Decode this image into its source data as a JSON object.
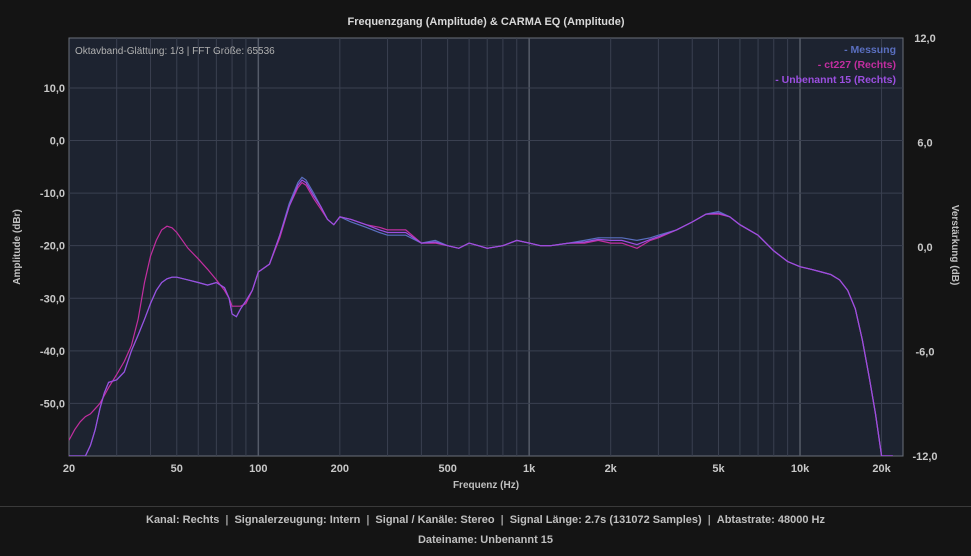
{
  "chart_data": {
    "type": "line",
    "title": "Frequenzgang (Amplitude) & CARMA EQ (Amplitude)",
    "xlabel": "Frequenz (Hz)",
    "ylabel": "Amplitude (dBr)",
    "y2label": "Verstärkung (dB)",
    "xscale": "log",
    "xlim": [
      20,
      24000
    ],
    "ylim": [
      -60,
      19.5
    ],
    "y2lim": [
      -12,
      12
    ],
    "x_ticks": [
      {
        "value": 20,
        "label": "20"
      },
      {
        "value": 50,
        "label": "50"
      },
      {
        "value": 100,
        "label": "100"
      },
      {
        "value": 200,
        "label": "200"
      },
      {
        "value": 500,
        "label": "500"
      },
      {
        "value": 1000,
        "label": "1k"
      },
      {
        "value": 2000,
        "label": "2k"
      },
      {
        "value": 5000,
        "label": "5k"
      },
      {
        "value": 10000,
        "label": "10k"
      },
      {
        "value": 20000,
        "label": "20k"
      }
    ],
    "y_ticks": [
      {
        "value": 10,
        "label": "10,0"
      },
      {
        "value": 0,
        "label": "0,0"
      },
      {
        "value": -10,
        "label": "-10,0"
      },
      {
        "value": -20,
        "label": "-20,0"
      },
      {
        "value": -30,
        "label": "-30,0"
      },
      {
        "value": -40,
        "label": "-40,0"
      },
      {
        "value": -50,
        "label": "-50,0"
      }
    ],
    "y2_ticks": [
      {
        "value": 12,
        "label": "12,0"
      },
      {
        "value": 6,
        "label": "6,0"
      },
      {
        "value": 0,
        "label": "0,0"
      },
      {
        "value": -6,
        "label": "-6,0"
      },
      {
        "value": -12,
        "label": "-12,0"
      }
    ],
    "info_text": "Oktavband-Glättung: 1/3 | FFT Größe: 65536",
    "legend_position": "top-right",
    "grid": true,
    "series": [
      {
        "name": "- Messung",
        "color": "#5a6fc0",
        "x": [
          20,
          21,
          22,
          23,
          24,
          25,
          26,
          27,
          28,
          30,
          32,
          34,
          36,
          38,
          40,
          42,
          44,
          46,
          48,
          50,
          55,
          60,
          65,
          70,
          75,
          78,
          80,
          83,
          86,
          90,
          95,
          100,
          110,
          120,
          130,
          140,
          145,
          150,
          160,
          170,
          180,
          190,
          200,
          220,
          250,
          280,
          300,
          350,
          400,
          450,
          500,
          550,
          600,
          650,
          700,
          800,
          900,
          1000,
          1100,
          1200,
          1400,
          1600,
          1800,
          2000,
          2200,
          2500,
          2800,
          3000,
          3500,
          4000,
          4500,
          5000,
          5500,
          6000,
          7000,
          8000,
          9000,
          10000,
          11000,
          12000,
          13000,
          14000,
          15000,
          16000,
          17000,
          18000,
          19000,
          20000,
          21000,
          22000
        ],
        "y": [
          -60,
          -60,
          -60,
          -60,
          -58,
          -55,
          -51,
          -48,
          -46,
          -45.5,
          -44,
          -40,
          -37,
          -34,
          -31,
          -28.5,
          -27,
          -26.3,
          -26,
          -26,
          -26.5,
          -27,
          -27.5,
          -27,
          -28,
          -30,
          -33,
          -33.5,
          -32,
          -30.5,
          -28.5,
          -25,
          -23.5,
          -18,
          -12,
          -8,
          -7,
          -7.5,
          -10,
          -12.5,
          -15,
          -16,
          -14.5,
          -15.5,
          -16.5,
          -17.5,
          -18,
          -18,
          -19.5,
          -19,
          -20,
          -20.5,
          -19.5,
          -20,
          -20.5,
          -20,
          -19,
          -19.5,
          -20,
          -20,
          -19.5,
          -19,
          -18.5,
          -18.5,
          -18.5,
          -19,
          -18.5,
          -18,
          -17,
          -15.5,
          -14,
          -13.5,
          -14.5,
          -16,
          -18,
          -21,
          -23,
          -24,
          -24.5,
          -25,
          -25.5,
          -26.5,
          -28.5,
          -32,
          -38,
          -45,
          -52,
          -60,
          -60,
          -60
        ]
      },
      {
        "name": "- ct227 (Rechts)",
        "color": "#c22ea0",
        "x": [
          20,
          21,
          22,
          23,
          24,
          25,
          26,
          27,
          28,
          30,
          32,
          34,
          36,
          38,
          40,
          42,
          44,
          46,
          48,
          50,
          55,
          60,
          65,
          70,
          75,
          78,
          80,
          83,
          86,
          90,
          95,
          100,
          110,
          120,
          130,
          140,
          145,
          150,
          160,
          170,
          180,
          190,
          200,
          220,
          250,
          280,
          300,
          350,
          400,
          450,
          500,
          550,
          600,
          650,
          700,
          800,
          900,
          1000,
          1100,
          1200,
          1400,
          1600,
          1800,
          2000,
          2200,
          2500,
          2800,
          3000,
          3500,
          4000,
          4500,
          5000,
          5500,
          6000,
          7000,
          8000,
          9000,
          10000,
          11000,
          12000,
          13000,
          14000,
          15000,
          16000,
          17000,
          18000,
          19000,
          20000,
          21000,
          22000
        ],
        "y": [
          -57,
          -55,
          -53.5,
          -52.5,
          -52,
          -51,
          -50,
          -48.5,
          -47,
          -44.5,
          -42,
          -39,
          -34,
          -27,
          -22,
          -19,
          -17,
          -16.3,
          -16.6,
          -17.5,
          -20.5,
          -22.5,
          -24.5,
          -26.5,
          -28.5,
          -30,
          -31.5,
          -31.5,
          -31.5,
          -31,
          -28.5,
          -25,
          -23.5,
          -18.5,
          -12.5,
          -9,
          -8,
          -8.5,
          -11,
          -13,
          -15,
          -16,
          -14.5,
          -15,
          -16,
          -16.5,
          -17,
          -17,
          -19.5,
          -19.5,
          -20,
          -20.5,
          -19.5,
          -20,
          -20.5,
          -20,
          -19,
          -19.5,
          -20,
          -20,
          -19.5,
          -19.5,
          -19,
          -19.5,
          -19.5,
          -20.5,
          -19,
          -18.5,
          -17,
          -15.5,
          -14,
          -14,
          -14.5,
          -16,
          -18,
          -21,
          -23,
          -24,
          -24.5,
          -25,
          -25.5,
          -26.5,
          -28.5,
          -32,
          -38,
          -45,
          -52,
          -60,
          -60,
          -60
        ]
      },
      {
        "name": "- Unbenannt 15 (Rechts)",
        "color": "#9b4fe0",
        "x": [
          20,
          21,
          22,
          23,
          24,
          25,
          26,
          27,
          28,
          30,
          32,
          34,
          36,
          38,
          40,
          42,
          44,
          46,
          48,
          50,
          55,
          60,
          65,
          70,
          75,
          78,
          80,
          83,
          86,
          90,
          95,
          100,
          110,
          120,
          130,
          140,
          145,
          150,
          160,
          170,
          180,
          190,
          200,
          220,
          250,
          280,
          300,
          350,
          400,
          450,
          500,
          550,
          600,
          650,
          700,
          800,
          900,
          1000,
          1100,
          1200,
          1400,
          1600,
          1800,
          2000,
          2200,
          2500,
          2800,
          3000,
          3500,
          4000,
          4500,
          5000,
          5500,
          6000,
          7000,
          8000,
          9000,
          10000,
          11000,
          12000,
          13000,
          14000,
          15000,
          16000,
          17000,
          18000,
          19000,
          20000,
          21000,
          22000
        ],
        "y": [
          -60,
          -60,
          -60,
          -60,
          -58,
          -55,
          -51,
          -48,
          -46,
          -45.5,
          -44,
          -40,
          -37,
          -34,
          -31,
          -28.5,
          -27,
          -26.3,
          -26,
          -26,
          -26.5,
          -27,
          -27.5,
          -27,
          -28,
          -30,
          -33,
          -33.5,
          -32,
          -30.5,
          -28.5,
          -25,
          -23.5,
          -18,
          -12.5,
          -8.5,
          -7.5,
          -8,
          -10.5,
          -12.5,
          -15,
          -16,
          -14.5,
          -15,
          -16,
          -17,
          -17.5,
          -17.5,
          -19.5,
          -19.3,
          -20,
          -20.5,
          -19.5,
          -20,
          -20.5,
          -20,
          -19,
          -19.5,
          -20,
          -20,
          -19.5,
          -19.3,
          -18.8,
          -19,
          -19,
          -19.8,
          -18.8,
          -18.3,
          -17,
          -15.5,
          -14,
          -13.8,
          -14.5,
          -16,
          -18,
          -21,
          -23,
          -24,
          -24.5,
          -25,
          -25.5,
          -26.5,
          -28.5,
          -32,
          -38,
          -45,
          -52,
          -60,
          -60,
          -60
        ]
      }
    ]
  },
  "footer": {
    "kanal": "Kanal: Rechts",
    "signalerzeugung": "Signalerzeugung: Intern",
    "signal_kanaele": "Signal / Kanäle: Stereo",
    "signal_laenge": "Signal Länge: 2.7s (131072 Samples)",
    "abtastrate": "Abtastrate: 48000 Hz",
    "dateiname": "Dateiname: Unbenannt 15"
  },
  "colors": {
    "plot_background": "#1d2330",
    "page_background": "#141414",
    "grid": "#3a4050",
    "decade_grid": "#555b68"
  }
}
